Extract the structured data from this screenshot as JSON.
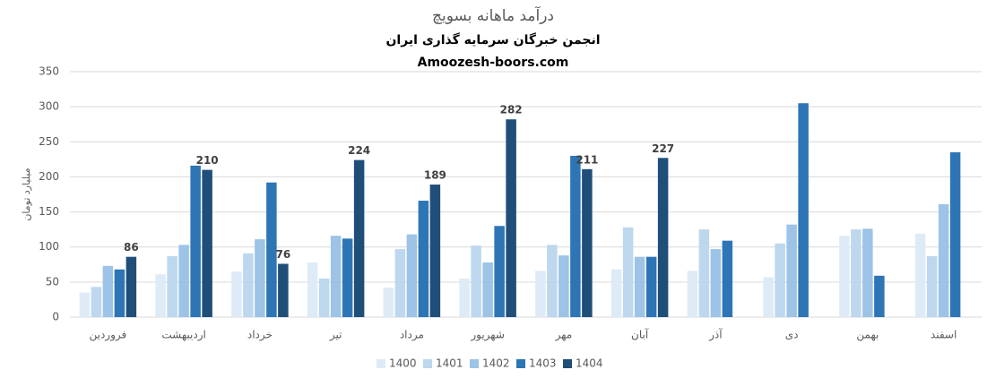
{
  "chart_data": {
    "type": "bar",
    "title": "درآمد ماهانه بسویچ",
    "subtitle": "انجمن خبرگان سرمایه گذاری ایران",
    "source": "Amoozesh-boors.com",
    "y_label": "میلیارد تومان",
    "categories": [
      "فروردین",
      "اردیبهشت",
      "خرداد",
      "تیر",
      "مرداد",
      "شهریور",
      "مهر",
      "آبان",
      "آذر",
      "دی",
      "بهمن",
      "اسفند"
    ],
    "series": [
      {
        "name": "1400",
        "color": "#deebf7",
        "values": [
          35,
          61,
          65,
          78,
          42,
          55,
          66,
          68,
          66,
          57,
          116,
          119
        ]
      },
      {
        "name": "1401",
        "color": "#bdd7ee",
        "values": [
          43,
          87,
          91,
          55,
          97,
          102,
          103,
          128,
          125,
          105,
          125,
          87
        ]
      },
      {
        "name": "1402",
        "color": "#9dc3e6",
        "values": [
          73,
          103,
          111,
          116,
          118,
          78,
          88,
          86,
          97,
          132,
          126,
          161
        ]
      },
      {
        "name": "1403",
        "color": "#2e75b6",
        "values": [
          68,
          216,
          192,
          112,
          166,
          130,
          230,
          86,
          109,
          305,
          59,
          235
        ]
      },
      {
        "name": "1404",
        "color": "#1f4e79",
        "values": [
          86,
          210,
          76,
          224,
          189,
          282,
          211,
          227,
          null,
          null,
          null,
          null
        ],
        "data_labels": true
      }
    ],
    "ylim": [
      0,
      350
    ],
    "yticks": [
      0,
      50,
      100,
      150,
      200,
      250,
      300,
      350
    ],
    "grid": true,
    "legend": "bottom"
  }
}
